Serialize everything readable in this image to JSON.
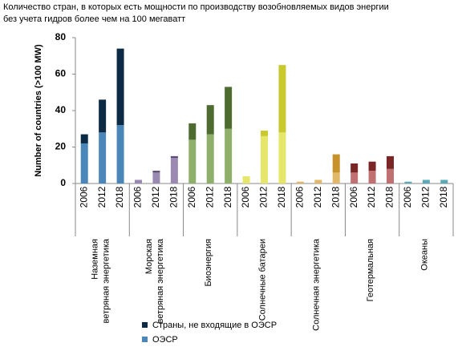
{
  "chart_data": {
    "type": "grouped-stacked-bar",
    "title": "Количество стран, в которых есть мощности по производству возобновляемых видов энергии",
    "subtitle": "без учета гидров более чем на 100 мегаватт",
    "y_label": "Number of countries (>100 MW)",
    "ylim": [
      0,
      80
    ],
    "yticks": [
      0,
      20,
      40,
      60,
      80
    ],
    "categories": [
      "2006",
      "2012",
      "2018",
      "2006",
      "2012",
      "2018",
      "2006",
      "2012",
      "2018",
      "2006",
      "2012",
      "2018",
      "2006",
      "2012",
      "2018",
      "2006",
      "2012",
      "2018",
      "2006",
      "2012",
      "2018"
    ],
    "groups": [
      {
        "label": [
          "Наземная",
          "ветряная энергетика"
        ],
        "colors": [
          "#0d2a45",
          "#4a86b8"
        ]
      },
      {
        "label": [
          "Морская",
          "ветряная энергетика"
        ],
        "colors": [
          "#5d4a73",
          "#9a89b0"
        ]
      },
      {
        "label": [
          "Биоэнергия"
        ],
        "colors": [
          "#4e6b30",
          "#8fb06a"
        ]
      },
      {
        "label": [
          "Солнечные батареи"
        ],
        "colors": [
          "#c9c92e",
          "#e6e66a"
        ]
      },
      {
        "label": [
          "Солнечная энергетика"
        ],
        "colors": [
          "#c8922a",
          "#e0b868"
        ]
      },
      {
        "label": [
          "Геотермальная"
        ],
        "colors": [
          "#7a2626",
          "#c07070"
        ]
      },
      {
        "label": [
          "Океаны"
        ],
        "colors": [
          "#3b8fa0",
          "#5aaab8"
        ]
      }
    ],
    "series": [
      {
        "name": "Страны, не входящие в ОЭСР",
        "color": "#0d2a45",
        "values": [
          5,
          18,
          42,
          0,
          1,
          1,
          9,
          16,
          23,
          0,
          3,
          37,
          0,
          0,
          10,
          5,
          5,
          7,
          0,
          0,
          0
        ]
      },
      {
        "name": "ОЭСР",
        "color": "#4a86b8",
        "values": [
          22,
          28,
          32,
          2,
          6,
          14,
          24,
          27,
          30,
          4,
          26,
          28,
          1,
          2,
          6,
          6,
          7,
          8,
          1,
          2,
          2
        ]
      }
    ]
  }
}
